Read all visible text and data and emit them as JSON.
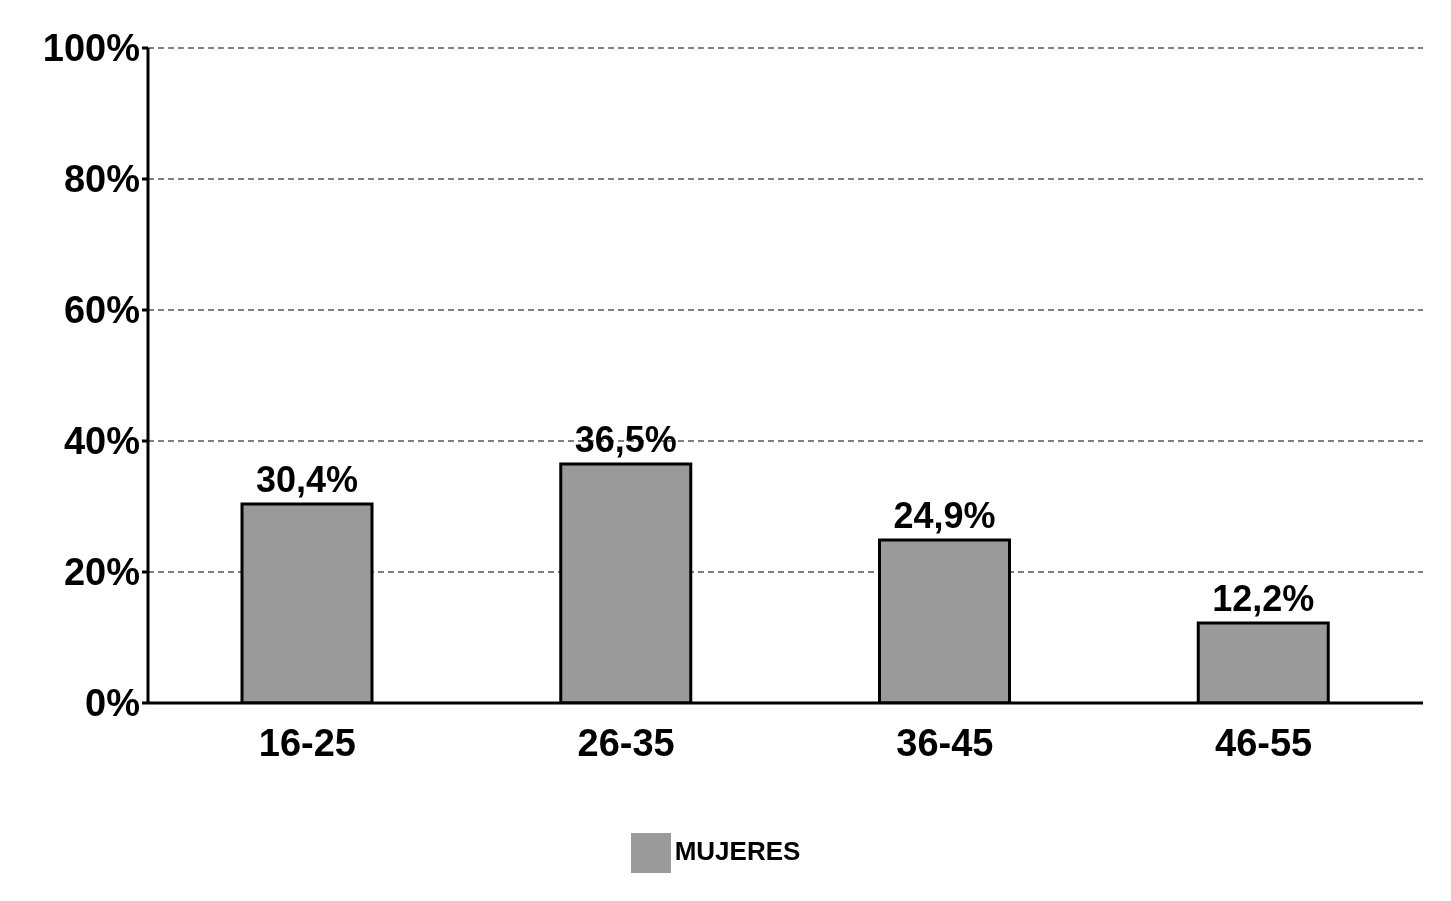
{
  "chart_data": {
    "type": "bar",
    "categories": [
      "16-25",
      "26-35",
      "36-45",
      "46-55"
    ],
    "series": [
      {
        "name": "MUJERES",
        "color": "#9a9a9a",
        "values": [
          30.4,
          36.5,
          24.9,
          12.2
        ],
        "value_labels": [
          "30,4%",
          "36,5%",
          "24,9%",
          "12,2%"
        ]
      }
    ],
    "ylim": [
      0,
      100
    ],
    "yticks": [
      {
        "value": 0,
        "label": "0%"
      },
      {
        "value": 20,
        "label": "20%"
      },
      {
        "value": 40,
        "label": "40%"
      },
      {
        "value": 60,
        "label": "60%"
      },
      {
        "value": 80,
        "label": "80%"
      },
      {
        "value": 100,
        "label": "100%"
      }
    ],
    "grid": "y",
    "legend": "bottom"
  }
}
